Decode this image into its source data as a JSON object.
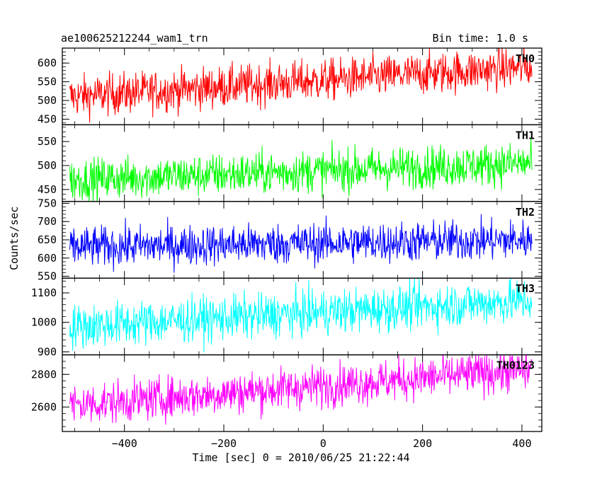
{
  "chart_data": {
    "type": "line",
    "title_left": "ae100625212244_wam1_trn",
    "title_right": "Bin time: 1.0 s",
    "xlabel": "Time [sec] 0 = 2010/06/25 21:22:44",
    "ylabel": "Counts/sec",
    "xlim": [
      -525,
      440
    ],
    "xticks": [
      -400,
      -200,
      0,
      200,
      400
    ],
    "x_data_range": [
      -510,
      420
    ],
    "bin_time": 1.0,
    "grid": false,
    "panels": [
      {
        "name": "TH0",
        "color": "#ff0000",
        "ylim": [
          435,
          640
        ],
        "yticks": [
          450,
          500,
          550,
          600
        ],
        "trend": [
          510,
          590
        ],
        "noise": 28
      },
      {
        "name": "TH1",
        "color": "#00ff00",
        "ylim": [
          425,
          585
        ],
        "yticks": [
          450,
          500,
          550
        ],
        "trend": [
          470,
          505
        ],
        "noise": 22
      },
      {
        "name": "TH2",
        "color": "#0000ff",
        "ylim": [
          545,
          755
        ],
        "yticks": [
          550,
          600,
          650,
          700,
          750
        ],
        "trend": [
          630,
          650
        ],
        "noise": 28
      },
      {
        "name": "TH3",
        "color": "#00ffff",
        "ylim": [
          890,
          1150
        ],
        "yticks": [
          900,
          1000,
          1100
        ],
        "trend": [
          985,
          1075
        ],
        "noise": 38
      },
      {
        "name": "TH0123",
        "color": "#ff00ff",
        "ylim": [
          2450,
          2920
        ],
        "yticks": [
          2600,
          2800
        ],
        "trend": [
          2610,
          2830
        ],
        "noise": 65
      }
    ]
  }
}
